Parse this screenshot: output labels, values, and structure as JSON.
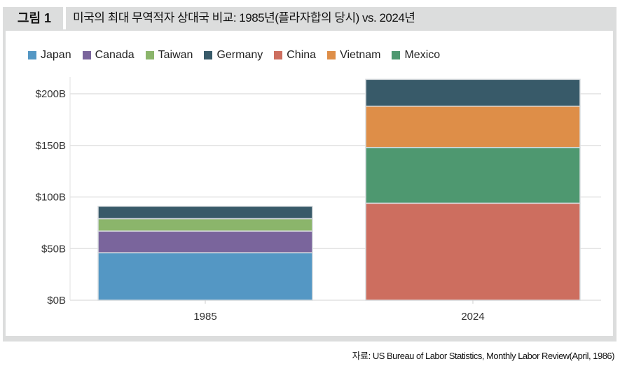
{
  "figure_label": "그림 1",
  "title": "미국의 최대 무역적자 상대국 비교: 1985년(플라자합의 당시) vs. 2024년",
  "source": "자료: US Bureau of Labor Statistics, Monthly Labor Review(April, 1986)",
  "chart_data": {
    "type": "bar",
    "stacked": true,
    "title": "",
    "xlabel": "",
    "ylabel": "",
    "categories": [
      "1985",
      "2024"
    ],
    "ylim": [
      0,
      215
    ],
    "yticks": [
      0,
      50,
      100,
      150,
      200
    ],
    "ytick_labels": [
      "$0B",
      "$50B",
      "$100B",
      "$150B",
      "$200B"
    ],
    "grid": true,
    "legend_position": "top-left",
    "series": [
      {
        "name": "Japan",
        "color": "#5497c4",
        "values": [
          46,
          0
        ]
      },
      {
        "name": "Canada",
        "color": "#7a659c",
        "values": [
          21,
          0
        ]
      },
      {
        "name": "Taiwan",
        "color": "#8bb56b",
        "values": [
          12,
          0
        ]
      },
      {
        "name": "Germany",
        "color": "#385a69",
        "values": [
          12,
          26
        ]
      },
      {
        "name": "China",
        "color": "#cd6e5f",
        "values": [
          0,
          94
        ]
      },
      {
        "name": "Vietnam",
        "color": "#de8e48",
        "values": [
          0,
          40
        ]
      },
      {
        "name": "Mexico",
        "color": "#4e9870",
        "values": [
          0,
          54
        ]
      }
    ],
    "stack_order": {
      "1985": [
        "Japan",
        "Canada",
        "Taiwan",
        "Germany"
      ],
      "2024": [
        "China",
        "Mexico",
        "Vietnam",
        "Germany"
      ]
    }
  }
}
